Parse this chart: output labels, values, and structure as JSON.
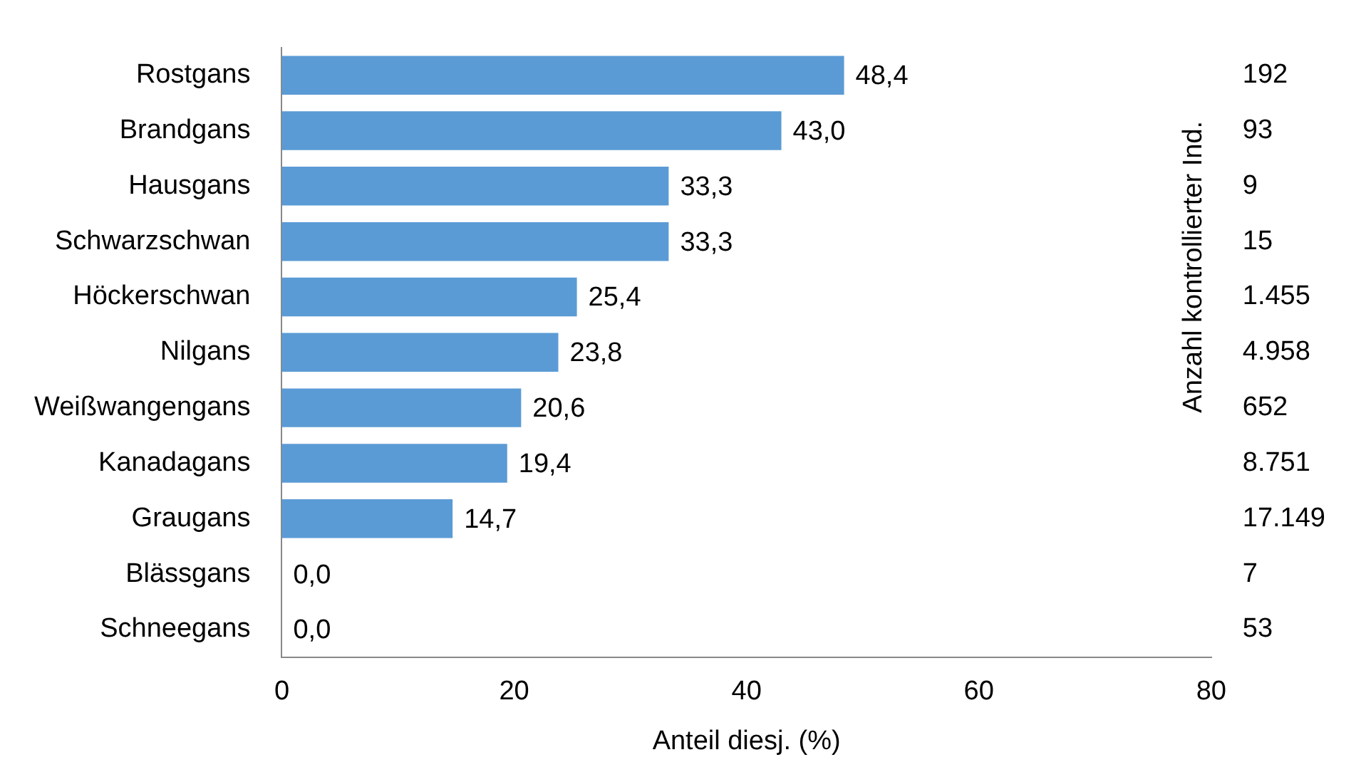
{
  "chart_data": {
    "type": "bar",
    "orientation": "horizontal",
    "categories": [
      "Rostgans",
      "Brandgans",
      "Hausgans",
      "Schwarzschwan",
      "Höckerschwan",
      "Nilgans",
      "Weißwangengans",
      "Kanadagans",
      "Graugans",
      "Blässgans",
      "Schneegans"
    ],
    "values": [
      48.4,
      43.0,
      33.3,
      33.3,
      25.4,
      23.8,
      20.6,
      19.4,
      14.7,
      0.0,
      0.0
    ],
    "value_labels": [
      "48,4",
      "43,0",
      "33,3",
      "33,3",
      "25,4",
      "23,8",
      "20,6",
      "19,4",
      "14,7",
      "0,0",
      "0,0"
    ],
    "color": "#5b9bd5",
    "y2_categories": [
      "192",
      "93",
      "9",
      "15",
      "1.455",
      "4.958",
      "652",
      "8.751",
      "17.149",
      "7",
      "53"
    ],
    "y2label": "Anzahl kontrollierter Ind.",
    "xlabel": "Anteil diesj. (%)",
    "xlim": [
      0,
      80
    ],
    "xticks": [
      0,
      20,
      40,
      60,
      80
    ],
    "legend": false
  }
}
